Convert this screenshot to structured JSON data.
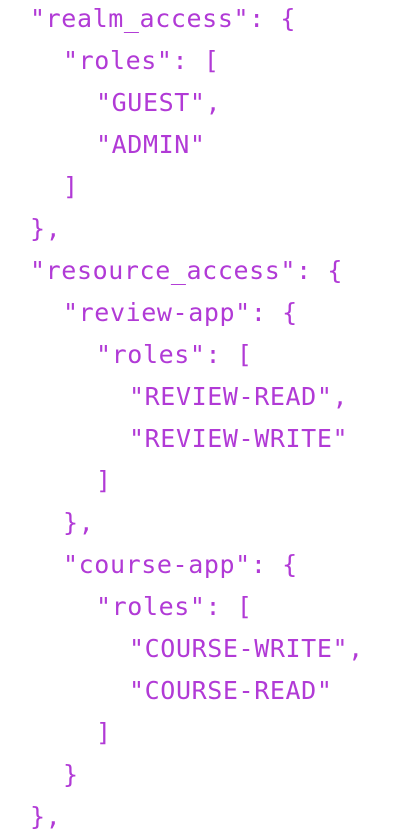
{
  "colors": {
    "text": "#b13ad6",
    "background": "#ffffff"
  },
  "lines": [
    {
      "indent": 1,
      "text": "\"realm_access\": {"
    },
    {
      "indent": 2,
      "text": "\"roles\": ["
    },
    {
      "indent": 3,
      "text": "\"GUEST\","
    },
    {
      "indent": 3,
      "text": "\"ADMIN\""
    },
    {
      "indent": 2,
      "text": "]"
    },
    {
      "indent": 1,
      "text": "},"
    },
    {
      "indent": 1,
      "text": "\"resource_access\": {"
    },
    {
      "indent": 2,
      "text": "\"review-app\": {"
    },
    {
      "indent": 3,
      "text": "\"roles\": ["
    },
    {
      "indent": 4,
      "text": "\"REVIEW-READ\","
    },
    {
      "indent": 4,
      "text": "\"REVIEW-WRITE\""
    },
    {
      "indent": 3,
      "text": "]"
    },
    {
      "indent": 2,
      "text": "},"
    },
    {
      "indent": 2,
      "text": "\"course-app\": {"
    },
    {
      "indent": 3,
      "text": "\"roles\": ["
    },
    {
      "indent": 4,
      "text": "\"COURSE-WRITE\","
    },
    {
      "indent": 4,
      "text": "\"COURSE-READ\""
    },
    {
      "indent": 3,
      "text": "]"
    },
    {
      "indent": 2,
      "text": "}"
    },
    {
      "indent": 1,
      "text": "},"
    }
  ]
}
